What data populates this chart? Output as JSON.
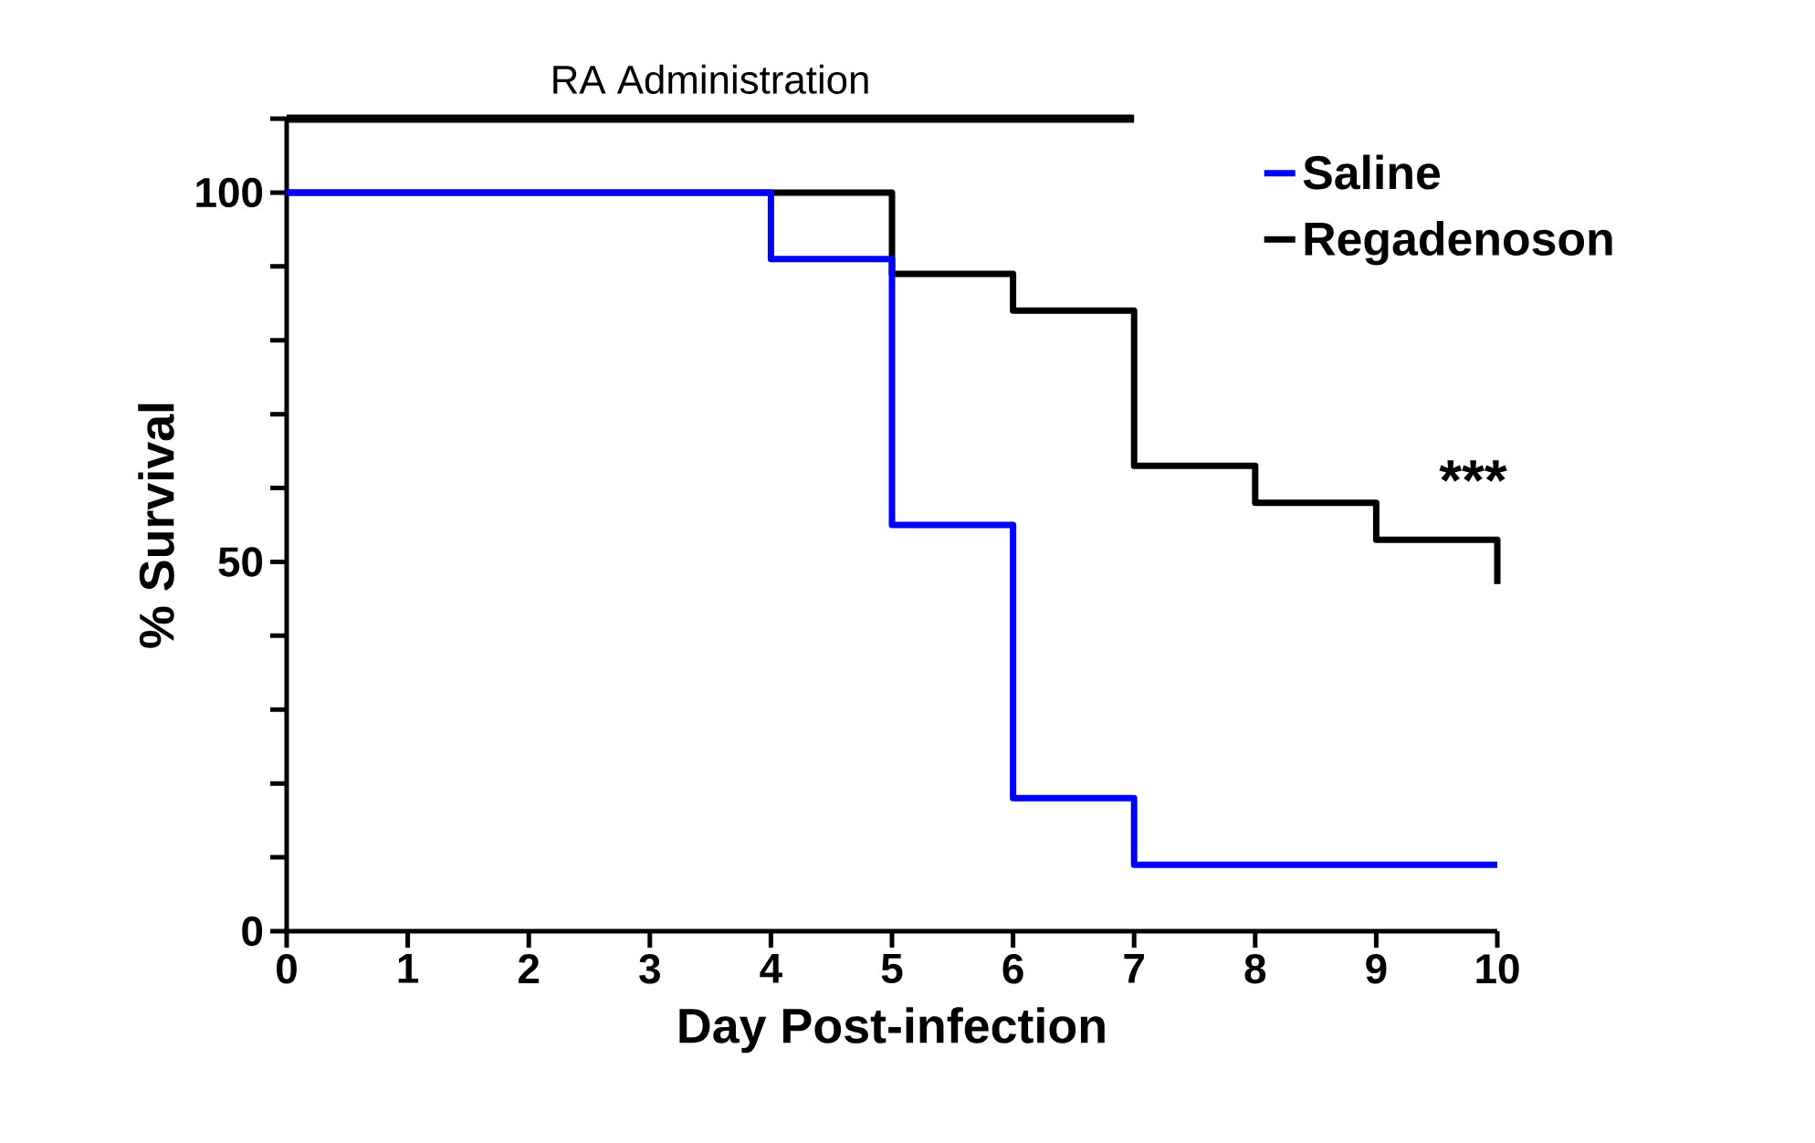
{
  "chart_data": {
    "type": "step",
    "xlabel": "Day Post-infection",
    "ylabel": "% Survival",
    "xlim": [
      0,
      10
    ],
    "ylim": [
      0,
      110
    ],
    "xticks": [
      0,
      1,
      2,
      3,
      4,
      5,
      6,
      7,
      8,
      9,
      10
    ],
    "yticks": [
      0,
      {
        "value": 10,
        "label": null
      },
      {
        "value": 20,
        "label": null
      },
      {
        "value": 30,
        "label": null
      },
      {
        "value": 40,
        "label": null
      },
      50,
      {
        "value": 60,
        "label": null
      },
      {
        "value": 70,
        "label": null
      },
      {
        "value": 80,
        "label": null
      },
      {
        "value": 90,
        "label": null
      },
      100,
      {
        "value": 110,
        "label": null
      }
    ],
    "series": [
      {
        "name": "Saline",
        "color": "#0000ff",
        "x": [
          0,
          4,
          5,
          6,
          7,
          10
        ],
        "values": [
          100,
          91,
          55,
          18,
          9,
          9
        ]
      },
      {
        "name": "Regadenoson",
        "color": "#000000",
        "x": [
          0,
          5,
          6,
          7,
          8,
          9,
          10
        ],
        "values": [
          100,
          89,
          84,
          63,
          58,
          53,
          47
        ]
      },
      {
        "type": "line",
        "color": "#000000",
        "x": [
          0,
          7
        ],
        "values": [
          110,
          110
        ]
      }
    ],
    "annotations": [
      "***",
      {
        "text": "RA Administration",
        "x": 3.5,
        "y": 110
      }
    ],
    "legend": "top right",
    "grid": false,
    "marker": "none",
    "line_style": "solid"
  }
}
